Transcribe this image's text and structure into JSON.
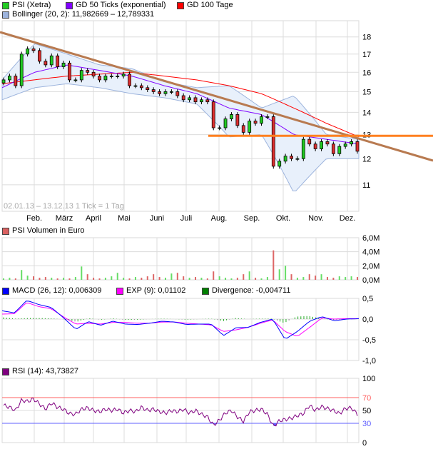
{
  "legend": {
    "price": {
      "label": "PSI (Xetra)",
      "color": "#22cc22"
    },
    "gd50": {
      "label": "GD 50 Ticks (exponential)",
      "color": "#8000ff"
    },
    "gd100": {
      "label": "GD 100 Tage",
      "color": "#ff0000"
    },
    "bollinger": {
      "label": "Bollinger (20, 2): 11,982669 – 12,789331",
      "color": "#9db4dd"
    },
    "volume": {
      "label": "PSI Volumen in Euro",
      "color": "#d96060"
    },
    "macd": {
      "label": "MACD (26, 12): 0,006309",
      "color": "#0000ff"
    },
    "exp": {
      "label": "EXP (9): 0,01102",
      "color": "#ff00ff"
    },
    "divergence": {
      "label": "Divergence: -0,004711",
      "color": "#008000"
    },
    "rsi": {
      "label": "RSI (14): 43,73827",
      "color": "#800080"
    }
  },
  "range_note": "02.01.13 – 13.12.13   1 Tick = 1 Tag",
  "chart_data": [
    {
      "type": "candlestick",
      "title": "PSI (Xetra)",
      "x_start": "02.01.13",
      "x_end": "13.12.13",
      "y_scale": "log",
      "ylim": [
        10.07,
        19.0
      ],
      "y_ticks": [
        "11",
        "12",
        "13",
        "14",
        "15",
        "16",
        "17",
        "18"
      ],
      "x_ticks": [
        "Feb.",
        "März",
        "April",
        "Mai",
        "Juni",
        "Juli",
        "Aug.",
        "Sep.",
        "Okt.",
        "Nov.",
        "Dez."
      ],
      "grid": true,
      "close": [
        15.6,
        15.8,
        15.3,
        17.0,
        17.3,
        17.2,
        16.6,
        16.4,
        16.9,
        16.3,
        16.5,
        15.6,
        15.6,
        16.1,
        16.0,
        15.8,
        15.6,
        15.8,
        15.8,
        15.8,
        15.9,
        15.3,
        15.3,
        15.2,
        15.1,
        15.0,
        14.9,
        15.0,
        15.0,
        14.8,
        14.6,
        14.7,
        14.5,
        14.6,
        14.5,
        13.3,
        13.3,
        13.7,
        13.9,
        13.4,
        13.1,
        13.6,
        13.5,
        13.8,
        13.8,
        11.7,
        11.9,
        12.1,
        12.0,
        12.0,
        12.8,
        12.6,
        12.4,
        12.7,
        12.6,
        12.2,
        12.5,
        12.6,
        12.7,
        12.3
      ],
      "gd100": [
        15.4,
        15.6,
        15.8,
        15.9,
        16.0,
        15.8,
        15.6,
        15.3,
        14.9,
        14.2,
        13.5,
        12.9
      ],
      "gd50": [
        15.2,
        16.0,
        16.4,
        16.1,
        15.8,
        15.3,
        14.9,
        14.2,
        13.9,
        13.0,
        12.8,
        12.6
      ],
      "bollinger_upper": [
        15.6,
        17.6,
        17.0,
        16.4,
        16.2,
        15.5,
        15.2,
        15.3,
        14.2,
        14.8,
        13.0,
        12.8
      ],
      "bollinger_lower": [
        14.6,
        15.2,
        15.4,
        15.2,
        14.9,
        14.7,
        14.4,
        12.9,
        13.0,
        10.7,
        12.0,
        12.0
      ],
      "support_level": 12.95,
      "trendline_color": "#b87a50",
      "support_color": "#ff8020"
    },
    {
      "type": "bar",
      "title": "PSI Volumen in Euro",
      "ylim": [
        0,
        6
      ],
      "y_ticks": [
        "0,0M",
        "2,0M",
        "4,0M",
        "6,0M"
      ],
      "values_millions": [
        0.2,
        0.3,
        0.2,
        1.4,
        0.6,
        0.5,
        0.3,
        0.4,
        0.3,
        0.2,
        0.3,
        0.2,
        0.4,
        1.9,
        0.8,
        0.3,
        0.2,
        0.3,
        0.5,
        1.0,
        0.3,
        0.2,
        0.4,
        0.3,
        0.5,
        0.8,
        0.4,
        0.3,
        0.9,
        1.0,
        0.5,
        0.3,
        0.4,
        0.3,
        0.2,
        1.2,
        0.5,
        0.3,
        0.2,
        0.3,
        0.8,
        1.2,
        0.3,
        0.2,
        0.4,
        4.2,
        1.5,
        2.0,
        0.8,
        0.3,
        0.4,
        0.8,
        0.6,
        0.8,
        0.4,
        0.3,
        0.5,
        0.4,
        0.5,
        0.4
      ]
    },
    {
      "type": "line",
      "title": "MACD",
      "ylim": [
        -1.0,
        0.5
      ],
      "y_ticks": [
        "0,5",
        "0,0",
        "-0,5",
        "-1,0"
      ],
      "macd": [
        0.2,
        0.15,
        0.45,
        0.35,
        0.28,
        0.03,
        -0.25,
        -0.06,
        -0.15,
        -0.05,
        -0.12,
        -0.13,
        -0.1,
        -0.05,
        -0.07,
        -0.13,
        -0.12,
        -0.12,
        -0.4,
        -0.21,
        -0.2,
        -0.08,
        0.0,
        -0.49,
        -0.3,
        -0.05,
        0.06,
        -0.04,
        0.0,
        0.01
      ],
      "exp": [
        0.12,
        0.13,
        0.4,
        0.3,
        0.25,
        0.05,
        -0.12,
        -0.1,
        -0.12,
        -0.08,
        -0.08,
        -0.1,
        -0.1,
        -0.07,
        -0.07,
        -0.1,
        -0.12,
        -0.14,
        -0.3,
        -0.26,
        -0.2,
        -0.1,
        -0.02,
        -0.3,
        -0.42,
        -0.2,
        0.03,
        0.0,
        0.01,
        0.01
      ]
    },
    {
      "type": "line",
      "title": "RSI (14)",
      "ylim": [
        0,
        100
      ],
      "y_ticks": [
        "100",
        "70",
        "50",
        "30",
        "0"
      ],
      "levels": {
        "upper": 70,
        "lower": 30,
        "upper_color": "#ff6060",
        "lower_color": "#6060ff"
      },
      "values": [
        58,
        55,
        50,
        66,
        64,
        68,
        60,
        52,
        62,
        55,
        52,
        45,
        44,
        52,
        54,
        50,
        48,
        52,
        50,
        52,
        46,
        50,
        48,
        55,
        50,
        52,
        48,
        46,
        50,
        48,
        52,
        46,
        50,
        44,
        40,
        27,
        35,
        46,
        50,
        40,
        33,
        48,
        50,
        52,
        44,
        25,
        34,
        36,
        38,
        42,
        45,
        58,
        50,
        56,
        53,
        50,
        45,
        53,
        54,
        44
      ]
    }
  ]
}
